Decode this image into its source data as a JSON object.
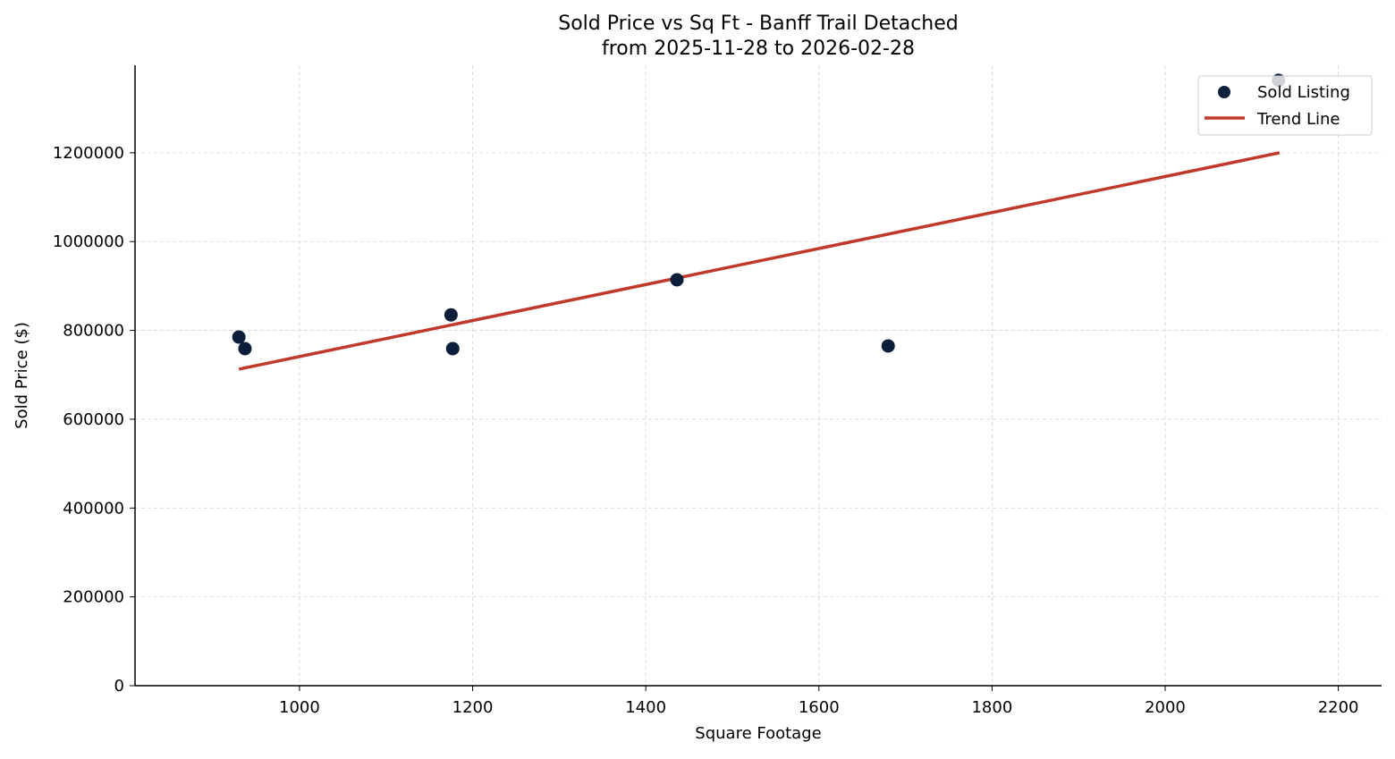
{
  "chart_data": {
    "type": "scatter",
    "title": "Sold Price vs Sq Ft - Banff Trail Detached",
    "subtitle": "from 2025-11-28 to 2026-02-28",
    "xlabel": "Square Footage",
    "ylabel": "Sold Price ($)",
    "xlim": [
      810,
      2250
    ],
    "ylim": [
      0,
      1397000
    ],
    "xticks": [
      1000,
      1200,
      1400,
      1600,
      1800,
      2000,
      2200
    ],
    "yticks": [
      0,
      200000,
      400000,
      600000,
      800000,
      1000000,
      1200000
    ],
    "grid": true,
    "legend_placement": "top-right",
    "series": [
      {
        "name": "Sold Listing",
        "type": "scatter",
        "color": "#0b1f3a",
        "points": [
          {
            "x": 930,
            "y": 785000
          },
          {
            "x": 937,
            "y": 759000
          },
          {
            "x": 1175,
            "y": 835000
          },
          {
            "x": 1177,
            "y": 759000
          },
          {
            "x": 1436,
            "y": 914000
          },
          {
            "x": 1680,
            "y": 765000
          },
          {
            "x": 2131,
            "y": 1363000
          }
        ]
      },
      {
        "name": "Trend Line",
        "type": "line",
        "color": "#c0392b",
        "points": [
          {
            "x": 930,
            "y": 712700
          },
          {
            "x": 2132,
            "y": 1200000
          }
        ]
      }
    ]
  }
}
